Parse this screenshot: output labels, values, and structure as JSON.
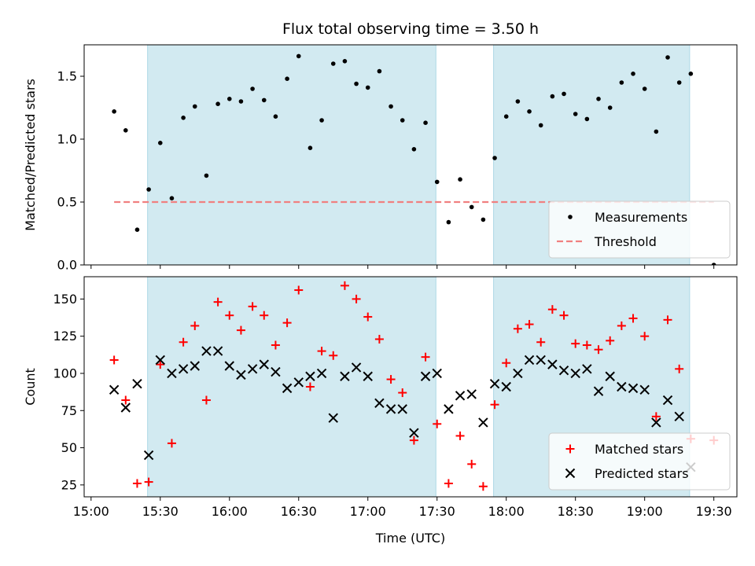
{
  "chart_data": {
    "title": "Flux total observing time = 3.50 h",
    "xlabel": "Time (UTC)",
    "x_tick_labels": [
      "15:00",
      "15:30",
      "16:00",
      "16:30",
      "17:00",
      "17:30",
      "18:00",
      "18:30",
      "19:00",
      "19:30"
    ],
    "x_ticks_min": [
      0,
      30,
      60,
      90,
      120,
      150,
      180,
      210,
      240,
      270
    ],
    "xlim_min": [
      -3,
      280
    ],
    "shaded_intervals_min": [
      [
        24.5,
        149.5
      ],
      [
        174.5,
        259.5
      ]
    ],
    "shade_color": "#add8e6",
    "panels": [
      {
        "type": "scatter",
        "ylabel": "Matched/Predicted stars",
        "ylim": [
          0,
          1.75
        ],
        "y_ticks": [
          0.0,
          0.5,
          1.0,
          1.5
        ],
        "y_tick_labels": [
          "0.0",
          "0.5",
          "1.0",
          "1.5"
        ],
        "threshold": {
          "name": "Threshold",
          "value": 0.5,
          "x_range_min": [
            10,
            270
          ],
          "color": "#f08080"
        },
        "series": [
          {
            "name": "Measurements",
            "marker": "dot",
            "color": "#000000",
            "x_min": [
              10,
              15,
              20,
              25,
              30,
              35,
              40,
              45,
              50,
              55,
              60,
              65,
              70,
              75,
              80,
              85,
              90,
              95,
              100,
              105,
              110,
              115,
              120,
              125,
              130,
              135,
              140,
              145,
              150,
              155,
              160,
              165,
              170,
              175,
              180,
              185,
              190,
              195,
              200,
              205,
              210,
              215,
              220,
              225,
              230,
              235,
              240,
              245,
              250,
              255,
              260,
              270
            ],
            "y": [
              1.22,
              1.07,
              0.28,
              0.6,
              0.97,
              0.53,
              1.17,
              1.26,
              0.71,
              1.28,
              1.32,
              1.3,
              1.4,
              1.31,
              1.18,
              1.48,
              1.66,
              0.93,
              1.15,
              1.6,
              1.62,
              1.44,
              1.41,
              1.54,
              1.26,
              1.15,
              0.92,
              1.13,
              0.66,
              0.34,
              0.68,
              0.46,
              0.36,
              0.85,
              1.18,
              1.3,
              1.22,
              1.11,
              1.34,
              1.36,
              1.2,
              1.16,
              1.32,
              1.25,
              1.45,
              1.52,
              1.4,
              1.06,
              1.65,
              1.45,
              1.52,
              0.0
            ]
          }
        ],
        "legend_position": "lower-right"
      },
      {
        "type": "scatter",
        "ylabel": "Count",
        "ylim": [
          17,
          165
        ],
        "y_ticks": [
          25,
          50,
          75,
          100,
          125,
          150
        ],
        "y_tick_labels": [
          "25",
          "50",
          "75",
          "100",
          "125",
          "150"
        ],
        "series": [
          {
            "name": "Matched stars",
            "marker": "plus",
            "color": "#ff0000",
            "x_min": [
              10,
              15,
              20,
              25,
              30,
              35,
              40,
              45,
              50,
              55,
              60,
              65,
              70,
              75,
              80,
              85,
              90,
              95,
              100,
              105,
              110,
              115,
              120,
              125,
              130,
              135,
              140,
              145,
              150,
              155,
              160,
              165,
              170,
              175,
              180,
              185,
              190,
              195,
              200,
              205,
              210,
              215,
              220,
              225,
              230,
              235,
              240,
              245,
              250,
              255,
              260,
              270
            ],
            "y": [
              109,
              82,
              26,
              27,
              106,
              53,
              121,
              132,
              82,
              148,
              139,
              129,
              145,
              139,
              119,
              134,
              156,
              91,
              115,
              112,
              159,
              150,
              138,
              123,
              96,
              87,
              55,
              111,
              66,
              26,
              58,
              39,
              24,
              79,
              107,
              130,
              133,
              121,
              143,
              139,
              120,
              119,
              116,
              122,
              132,
              137,
              125,
              71,
              136,
              103,
              56,
              55
            ]
          },
          {
            "name": "Predicted stars",
            "marker": "x",
            "color": "#000000",
            "x_min": [
              10,
              15,
              20,
              25,
              30,
              35,
              40,
              45,
              50,
              55,
              60,
              65,
              70,
              75,
              80,
              85,
              90,
              95,
              100,
              105,
              110,
              115,
              120,
              125,
              130,
              135,
              140,
              145,
              150,
              155,
              160,
              165,
              170,
              175,
              180,
              185,
              190,
              195,
              200,
              205,
              210,
              215,
              220,
              225,
              230,
              235,
              240,
              245,
              250,
              255,
              260
            ],
            "y": [
              89,
              77,
              93,
              45,
              109,
              100,
              103,
              105,
              115,
              115,
              105,
              99,
              103,
              106,
              101,
              90,
              94,
              98,
              100,
              70,
              98,
              104,
              98,
              80,
              76,
              76,
              60,
              98,
              100,
              76,
              85,
              86,
              67,
              93,
              91,
              100,
              109,
              109,
              106,
              102,
              100,
              103,
              88,
              98,
              91,
              90,
              89,
              67,
              82,
              71,
              37
            ]
          }
        ],
        "legend_position": "lower-right"
      }
    ]
  }
}
